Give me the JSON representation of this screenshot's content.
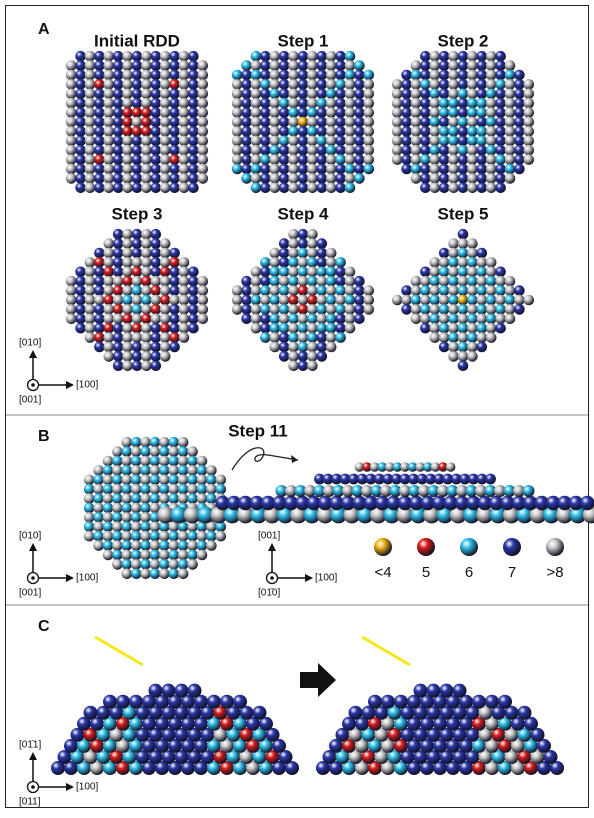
{
  "panels": [
    {
      "label": "A",
      "titles": [
        "Initial RDD",
        "Step 1",
        "Step 2",
        "Step 3",
        "Step 4",
        "Step 5"
      ],
      "axes": {
        "up": "[010]",
        "right": "[100]",
        "out": "[001]"
      }
    },
    {
      "label": "B",
      "title": "Step 11",
      "axes_top": {
        "up": "[010]",
        "right": "[100]",
        "out": "[001]"
      },
      "axes_side": {
        "up": "[001]",
        "right": "[100]",
        "out": "[01̄0]"
      },
      "legend": [
        "<4",
        "5",
        "6",
        "7",
        ">8"
      ]
    },
    {
      "label": "C",
      "axes": {
        "up": "[01̄1]",
        "right": "[100]",
        "out": "[011]"
      }
    }
  ]
}
